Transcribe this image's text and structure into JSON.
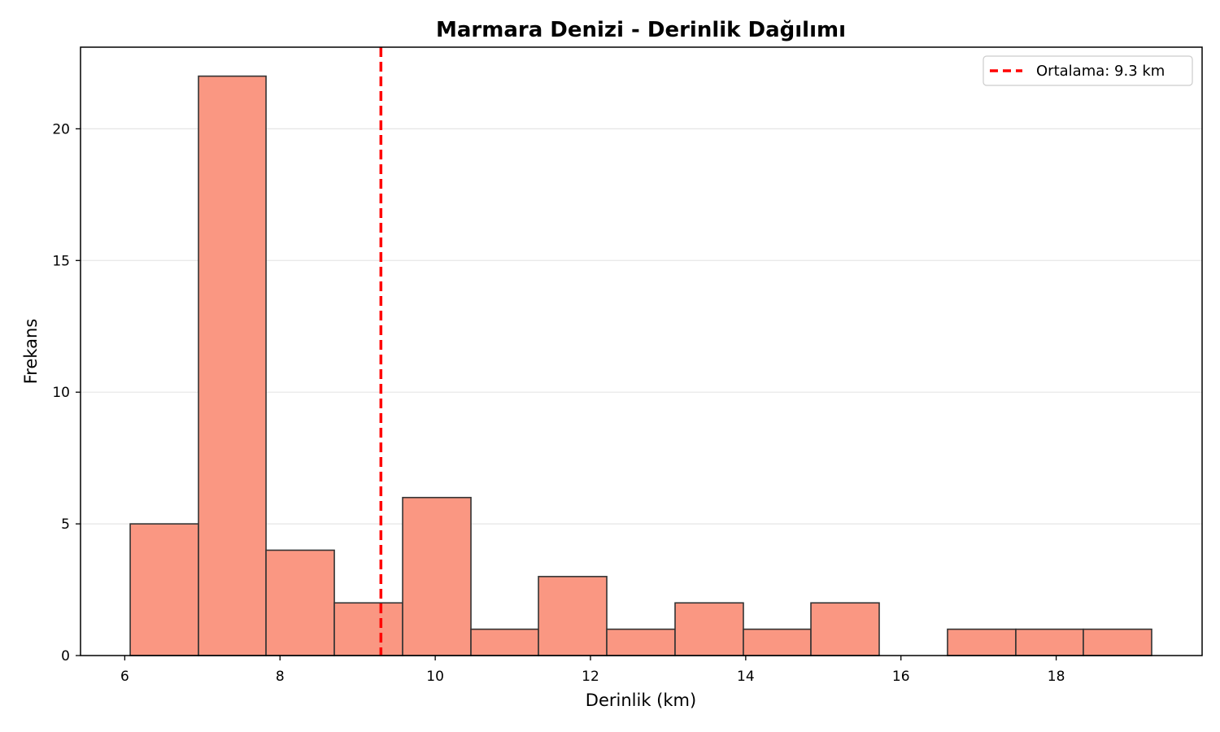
{
  "chart_data": {
    "type": "bar",
    "title": "Marmara Denizi - Derinlik Dağılımı",
    "xlabel": "Derinlik (km)",
    "ylabel": "Frekans",
    "xlim": [
      5.43,
      19.88
    ],
    "ylim": [
      0,
      23.1
    ],
    "xticks": [
      6,
      8,
      10,
      12,
      14,
      16,
      18
    ],
    "yticks": [
      0,
      5,
      10,
      15,
      20
    ],
    "grid": "y",
    "bins": [
      {
        "x0": 6.07,
        "x1": 6.95,
        "count": 5
      },
      {
        "x0": 6.95,
        "x1": 7.82,
        "count": 22
      },
      {
        "x0": 7.82,
        "x1": 8.7,
        "count": 4
      },
      {
        "x0": 8.7,
        "x1": 9.58,
        "count": 2
      },
      {
        "x0": 9.58,
        "x1": 10.46,
        "count": 6
      },
      {
        "x0": 10.46,
        "x1": 11.33,
        "count": 1
      },
      {
        "x0": 11.33,
        "x1": 12.21,
        "count": 3
      },
      {
        "x0": 12.21,
        "x1": 13.09,
        "count": 1
      },
      {
        "x0": 13.09,
        "x1": 13.97,
        "count": 2
      },
      {
        "x0": 13.97,
        "x1": 14.84,
        "count": 1
      },
      {
        "x0": 14.84,
        "x1": 15.72,
        "count": 2
      },
      {
        "x0": 15.72,
        "x1": 16.6,
        "count": 0
      },
      {
        "x0": 16.6,
        "x1": 17.48,
        "count": 1
      },
      {
        "x0": 17.48,
        "x1": 18.35,
        "count": 1
      },
      {
        "x0": 18.35,
        "x1": 19.23,
        "count": 1
      }
    ],
    "bar_color": "#fa9782",
    "mean_line": {
      "value": 9.3,
      "color": "#ff0000",
      "style": "dashed"
    },
    "legend": {
      "placement": "top-right",
      "entries": [
        "Ortalama: 9.3 km"
      ]
    }
  }
}
